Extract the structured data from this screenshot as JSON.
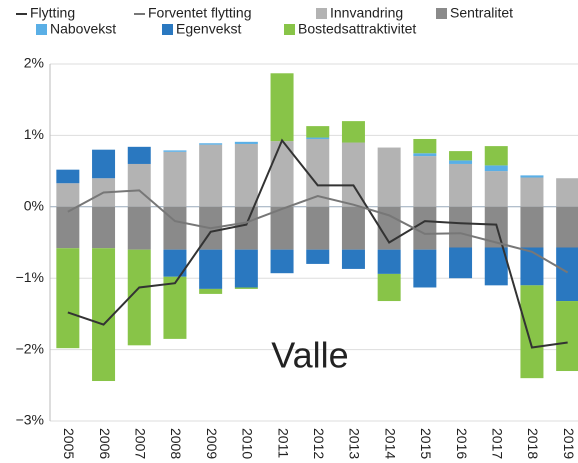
{
  "chart_data": {
    "type": "bar",
    "stacked": true,
    "annotation": "Valle",
    "categories": [
      "2005",
      "2006",
      "2007",
      "2008",
      "2009",
      "2010",
      "2011",
      "2012",
      "2013",
      "2014",
      "2015",
      "2016",
      "2017",
      "2018",
      "2019"
    ],
    "series": [
      {
        "name": "Innvandring",
        "color": "#b3b3b3",
        "values": [
          0.33,
          0.4,
          0.6,
          0.77,
          0.87,
          0.88,
          0.92,
          0.95,
          0.9,
          0.83,
          0.71,
          0.6,
          0.5,
          0.41,
          0.4
        ]
      },
      {
        "name": "Sentralitet",
        "color": "#8a8a8a",
        "values": [
          -0.58,
          -0.58,
          -0.6,
          -0.6,
          -0.6,
          -0.6,
          -0.6,
          -0.6,
          -0.6,
          -0.6,
          -0.6,
          -0.57,
          -0.57,
          -0.57,
          -0.57
        ]
      },
      {
        "name": "Nabovekst",
        "color": "#5aafe6",
        "values": [
          0,
          0,
          0,
          0.02,
          0.02,
          0.03,
          0,
          0.02,
          0,
          0,
          0.04,
          0.05,
          0.08,
          0.03,
          0
        ]
      },
      {
        "name": "Egenvekst",
        "color": "#2a78c0",
        "values": [
          0.19,
          0.4,
          0.24,
          -0.38,
          -0.55,
          -0.53,
          -0.33,
          -0.2,
          -0.27,
          -0.34,
          -0.53,
          -0.43,
          -0.53,
          -0.53,
          -0.75
        ]
      },
      {
        "name": "Bostedsattraktivitet",
        "color": "#88c448",
        "values": [
          -1.4,
          -1.86,
          -1.34,
          -0.87,
          -0.07,
          -0.02,
          0.95,
          0.16,
          0.3,
          -0.38,
          0.2,
          0.13,
          0.27,
          -1.3,
          -0.98
        ]
      }
    ],
    "line_series": [
      {
        "name": "Flytting",
        "color": "#333333",
        "values": [
          -1.48,
          -1.65,
          -1.13,
          -1.07,
          -0.35,
          -0.25,
          0.93,
          0.3,
          0.3,
          -0.5,
          -0.2,
          -0.23,
          -0.25,
          -1.97,
          -1.9
        ]
      },
      {
        "name": "Forventet flytting",
        "color": "#777777",
        "values": [
          -0.07,
          0.2,
          0.23,
          -0.2,
          -0.3,
          -0.22,
          -0.03,
          0.15,
          0.03,
          -0.12,
          -0.38,
          -0.37,
          -0.5,
          -0.63,
          -0.92
        ]
      }
    ],
    "ylim": [
      -3,
      2
    ],
    "yticks": [
      {
        "value": -3,
        "label": "−3%"
      },
      {
        "value": -2,
        "label": "−2%"
      },
      {
        "value": -1,
        "label": "−1%"
      },
      {
        "value": 0,
        "label": "0%"
      },
      {
        "value": 1,
        "label": "1%"
      },
      {
        "value": 2,
        "label": "2%"
      }
    ],
    "grid": true
  }
}
